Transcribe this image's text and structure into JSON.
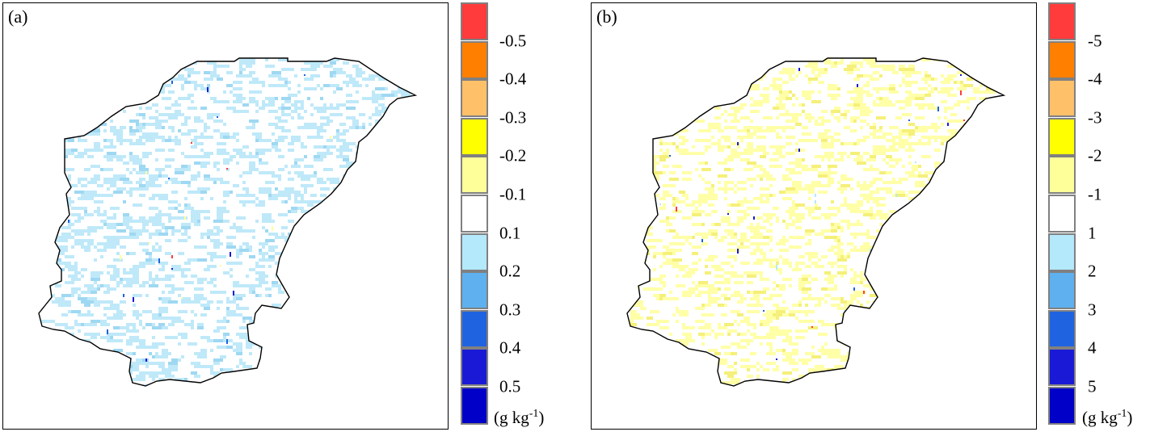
{
  "panels": [
    {
      "label": "(a)",
      "overall_tint": "light-blue",
      "colorbar": {
        "colors": [
          "#ff3b3b",
          "#ff8000",
          "#ffc06a",
          "#ffff00",
          "#ffff99",
          "#ffffff",
          "#b4e8fb",
          "#5eb0ef",
          "#1f63e0",
          "#1a1ad6",
          "#0000c8"
        ],
        "ticks": [
          "-0.5",
          "-0.4",
          "-0.3",
          "-0.2",
          "-0.1",
          "0.1",
          "0.2",
          "0.3",
          "0.4",
          "0.5"
        ],
        "unit_text": "(g kg",
        "unit_exp": "-1",
        "unit_close": ")"
      }
    },
    {
      "label": "(b)",
      "overall_tint": "light-yellow",
      "colorbar": {
        "colors": [
          "#ff3b3b",
          "#ff8000",
          "#ffc06a",
          "#ffff00",
          "#ffff99",
          "#ffffff",
          "#b4e8fb",
          "#5eb0ef",
          "#1f63e0",
          "#1a1ad6",
          "#0000c8"
        ],
        "ticks": [
          "-5",
          "-4",
          "-3",
          "-2",
          "-1",
          "1",
          "2",
          "3",
          "4",
          "5"
        ],
        "unit_text": "(g kg",
        "unit_exp": "-1",
        "unit_close": ")"
      }
    }
  ]
}
